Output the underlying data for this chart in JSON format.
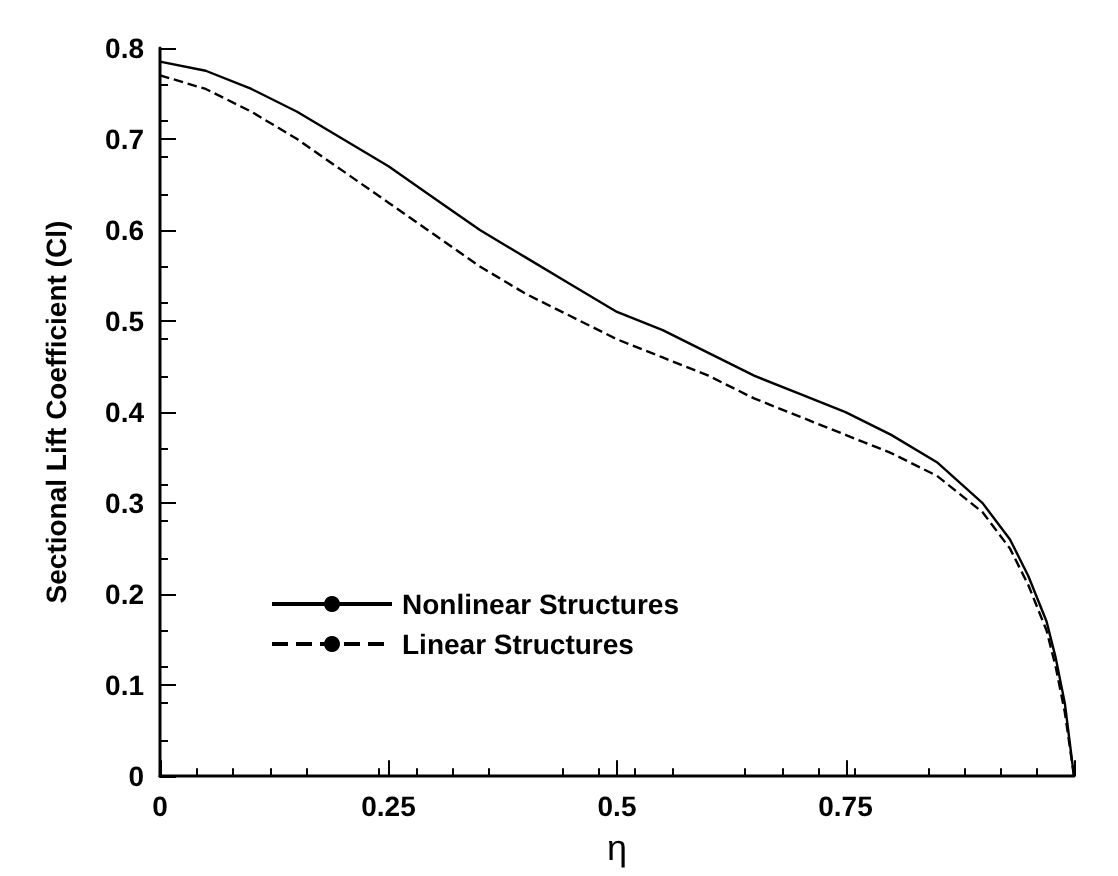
{
  "chart_data": {
    "type": "line",
    "xlabel": "η",
    "ylabel": "Sectional Lift Coefficient (Cl)",
    "xlim": [
      0,
      1
    ],
    "ylim": [
      0,
      0.8
    ],
    "xticks": [
      0,
      0.25,
      0.5,
      0.75,
      {
        "value": 1,
        "label": null
      }
    ],
    "yticks": [
      0,
      0.1,
      0.2,
      0.3,
      0.4,
      0.5,
      0.6,
      0.7,
      0.8
    ],
    "grid": false,
    "legend": "bottom left",
    "marker": "none",
    "x": [
      0,
      0.05,
      0.1,
      0.15,
      0.2,
      0.25,
      0.3,
      0.35,
      0.4,
      0.45,
      0.5,
      0.55,
      0.6,
      0.65,
      0.7,
      0.75,
      0.8,
      0.85,
      0.9,
      0.93,
      0.95,
      0.97,
      0.98,
      0.99,
      1.0
    ],
    "series": [
      {
        "name": "Nonlinear Structures",
        "color": "#000000",
        "line_style": "solid",
        "values": [
          0.785,
          0.775,
          0.755,
          0.73,
          0.7,
          0.67,
          0.635,
          0.6,
          0.57,
          0.54,
          0.51,
          0.49,
          0.465,
          0.44,
          0.42,
          0.4,
          0.375,
          0.345,
          0.3,
          0.26,
          0.22,
          0.17,
          0.13,
          0.08,
          0
        ]
      },
      {
        "name": "Linear Structures",
        "color": "#000000",
        "line_style": "dashed",
        "values": [
          0.77,
          0.755,
          0.73,
          0.7,
          0.665,
          0.63,
          0.595,
          0.56,
          0.53,
          0.505,
          0.48,
          0.46,
          0.44,
          0.415,
          0.395,
          0.375,
          0.355,
          0.33,
          0.29,
          0.25,
          0.21,
          0.16,
          0.12,
          0.07,
          0
        ]
      }
    ]
  }
}
